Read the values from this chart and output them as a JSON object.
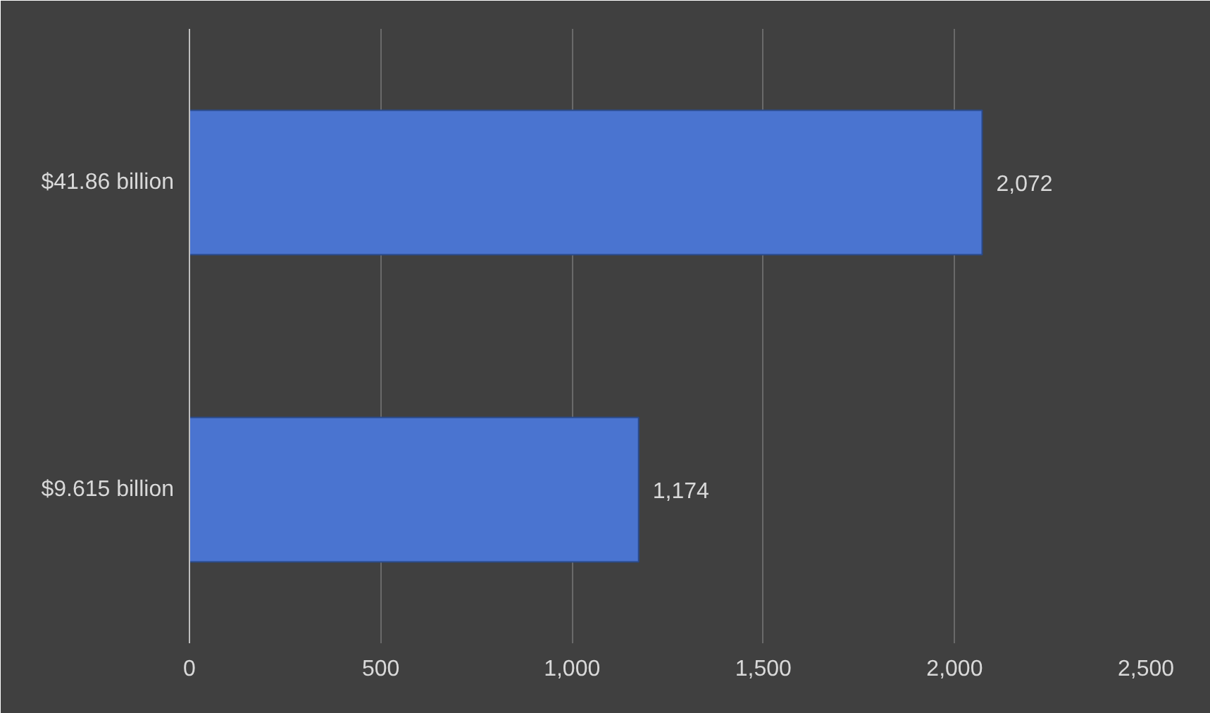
{
  "chart_data": {
    "type": "bar",
    "orientation": "horizontal",
    "categories": [
      "$41.86 billion",
      "$9.615 billion"
    ],
    "values": [
      2072,
      1174
    ],
    "color": "#4a74d0",
    "xlim": [
      0,
      2500
    ],
    "xticks": [
      0,
      {
        "value": 500,
        "label": "500"
      },
      {
        "value": 1000,
        "label": "1,000"
      },
      {
        "value": 1500,
        "label": "1,500"
      },
      {
        "value": 2000,
        "label": "2,000"
      },
      {
        "value": 2500,
        "label": "2,500"
      }
    ],
    "grid": "x",
    "value_labels": [
      "2,072",
      "1,174"
    ]
  }
}
